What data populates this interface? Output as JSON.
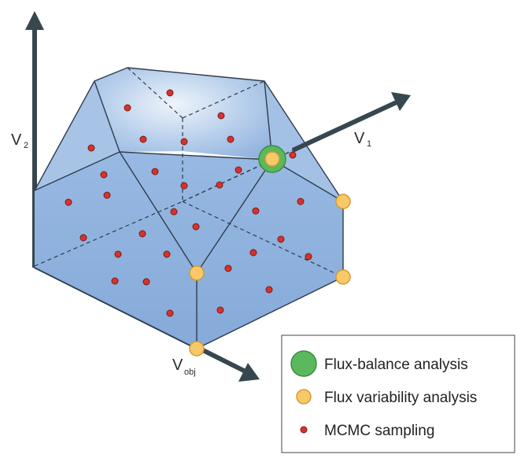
{
  "axes": {
    "v2": {
      "main": "V",
      "sub": "2"
    },
    "v1": {
      "main": "V",
      "sub": "1"
    },
    "vobj": {
      "main": "V",
      "sub": "obj"
    }
  },
  "legend": {
    "items": [
      {
        "label": "Flux-balance analysis",
        "marker": "fba-marker"
      },
      {
        "label": "Flux variability analysis",
        "marker": "fva-marker"
      },
      {
        "label": "MCMC sampling",
        "marker": "mcmc-marker"
      }
    ]
  },
  "colors": {
    "axis": "#37474f",
    "polytope_top": "#cfe0f3",
    "polytope_face": "#8fb2df",
    "edge": "#2f3c4d",
    "mcmc_point": "#d8322b",
    "fva_point": "#f8c86a",
    "fba_outer": "#5cb85c",
    "fba_inner": "#f8c86a"
  }
}
